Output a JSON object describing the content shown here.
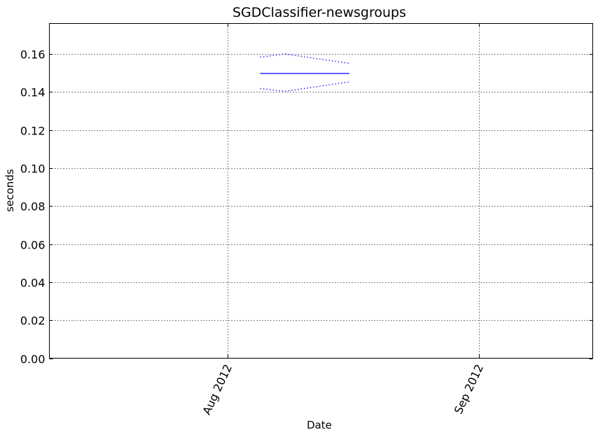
{
  "chart_data": {
    "type": "line",
    "title": "SGDClassifier-newsgroups",
    "xlabel": "Date",
    "ylabel": "seconds",
    "x_axis": {
      "type": "date",
      "range": [
        "2012-07-10",
        "2012-09-15"
      ],
      "ticks": [
        {
          "date": "2012-08-01",
          "label": "Aug 2012"
        },
        {
          "date": "2012-09-01",
          "label": "Sep 2012"
        }
      ],
      "tick_label_rotation_deg": -65
    },
    "y_axis": {
      "range": [
        0.0,
        0.176
      ],
      "ticks": [
        0.0,
        0.02,
        0.04,
        0.06,
        0.08,
        0.1,
        0.12,
        0.14,
        0.16
      ],
      "tick_labels": [
        "0.00",
        "0.02",
        "0.04",
        "0.06",
        "0.08",
        "0.10",
        "0.12",
        "0.14",
        "0.16"
      ]
    },
    "grid": true,
    "series": [
      {
        "role": "mean",
        "color": "#0000ff",
        "style": "solid",
        "points": [
          {
            "x": "2012-08-05",
            "y": 0.1497
          },
          {
            "x": "2012-08-16",
            "y": 0.1497
          }
        ]
      },
      {
        "role": "upper bound",
        "color": "#0000ff",
        "style": "dotted",
        "points": [
          {
            "x": "2012-08-05",
            "y": 0.1583
          },
          {
            "x": "2012-08-08",
            "y": 0.16
          },
          {
            "x": "2012-08-16",
            "y": 0.155
          }
        ]
      },
      {
        "role": "lower bound",
        "color": "#0000ff",
        "style": "dotted",
        "points": [
          {
            "x": "2012-08-05",
            "y": 0.1418
          },
          {
            "x": "2012-08-08",
            "y": 0.1403
          },
          {
            "x": "2012-08-16",
            "y": 0.1453
          }
        ]
      }
    ]
  }
}
